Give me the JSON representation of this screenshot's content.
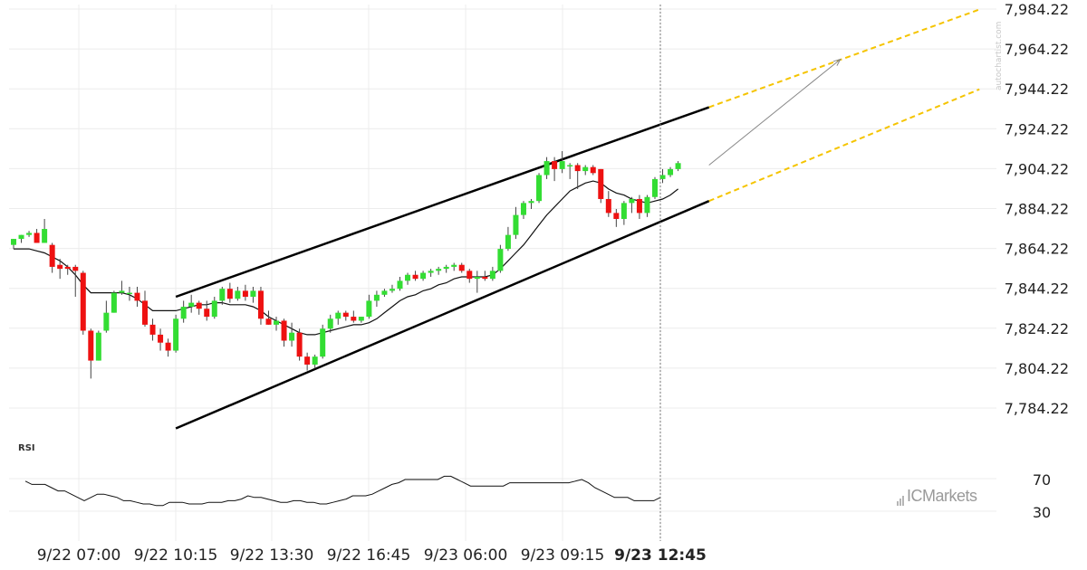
{
  "chart_data": {
    "type": "candlestick",
    "y_axis": {
      "ticks": [
        "7,984.22",
        "7,964.22",
        "7,944.22",
        "7,924.22",
        "7,904.22",
        "7,884.22",
        "7,864.22",
        "7,844.22",
        "7,824.22",
        "7,804.22",
        "7,784.22"
      ],
      "ylim": [
        7778,
        7986
      ],
      "position": "right"
    },
    "x_axis": {
      "ticks": [
        "9/22 07:00",
        "9/22 10:15",
        "9/22 13:30",
        "9/22 16:45",
        "9/23 06:00",
        "9/23 09:15",
        "9/23 12:45"
      ],
      "highlighted_tick": "9/23 12:45"
    },
    "grid": true,
    "colors": {
      "up": "#33dd33",
      "down": "#ee1111",
      "moving_average": "#111111",
      "channel": "#000000",
      "projection": "#f5c400",
      "arrow": "#888888"
    },
    "candles": [
      {
        "o": 7866,
        "h": 7869,
        "l": 7864,
        "c": 7869
      },
      {
        "o": 7869,
        "h": 7871,
        "l": 7867,
        "c": 7871
      },
      {
        "o": 7871,
        "h": 7873,
        "l": 7870,
        "c": 7872
      },
      {
        "o": 7872,
        "h": 7874,
        "l": 7867,
        "c": 7867
      },
      {
        "o": 7867,
        "h": 7879,
        "l": 7867,
        "c": 7874
      },
      {
        "o": 7866,
        "h": 7867,
        "l": 7852,
        "c": 7855
      },
      {
        "o": 7856,
        "h": 7859,
        "l": 7849,
        "c": 7854
      },
      {
        "o": 7855,
        "h": 7856,
        "l": 7851,
        "c": 7854
      },
      {
        "o": 7855,
        "h": 7856,
        "l": 7840,
        "c": 7853
      },
      {
        "o": 7852,
        "h": 7853,
        "l": 7821,
        "c": 7823
      },
      {
        "o": 7823,
        "h": 7824,
        "l": 7799,
        "c": 7808
      },
      {
        "o": 7808,
        "h": 7823,
        "l": 7808,
        "c": 7822
      },
      {
        "o": 7823,
        "h": 7838,
        "l": 7822,
        "c": 7832
      },
      {
        "o": 7832,
        "h": 7843,
        "l": 7832,
        "c": 7842
      },
      {
        "o": 7842,
        "h": 7848,
        "l": 7841,
        "c": 7843
      },
      {
        "o": 7842,
        "h": 7845,
        "l": 7838,
        "c": 7842
      },
      {
        "o": 7842,
        "h": 7845,
        "l": 7835,
        "c": 7838
      },
      {
        "o": 7838,
        "h": 7843,
        "l": 7825,
        "c": 7826
      },
      {
        "o": 7826,
        "h": 7829,
        "l": 7818,
        "c": 7821
      },
      {
        "o": 7821,
        "h": 7824,
        "l": 7813,
        "c": 7817
      },
      {
        "o": 7817,
        "h": 7819,
        "l": 7810,
        "c": 7813
      },
      {
        "o": 7813,
        "h": 7831,
        "l": 7812,
        "c": 7829
      },
      {
        "o": 7829,
        "h": 7838,
        "l": 7827,
        "c": 7835
      },
      {
        "o": 7835,
        "h": 7841,
        "l": 7832,
        "c": 7837
      },
      {
        "o": 7837,
        "h": 7838,
        "l": 7831,
        "c": 7834
      },
      {
        "o": 7834,
        "h": 7838,
        "l": 7828,
        "c": 7830
      },
      {
        "o": 7830,
        "h": 7840,
        "l": 7829,
        "c": 7838
      },
      {
        "o": 7838,
        "h": 7845,
        "l": 7836,
        "c": 7844
      },
      {
        "o": 7844,
        "h": 7847,
        "l": 7837,
        "c": 7839
      },
      {
        "o": 7839,
        "h": 7845,
        "l": 7838,
        "c": 7843
      },
      {
        "o": 7843,
        "h": 7846,
        "l": 7838,
        "c": 7840
      },
      {
        "o": 7840,
        "h": 7845,
        "l": 7837,
        "c": 7843
      },
      {
        "o": 7843,
        "h": 7845,
        "l": 7826,
        "c": 7829
      },
      {
        "o": 7829,
        "h": 7833,
        "l": 7826,
        "c": 7826
      },
      {
        "o": 7826,
        "h": 7830,
        "l": 7823,
        "c": 7828
      },
      {
        "o": 7828,
        "h": 7829,
        "l": 7815,
        "c": 7818
      },
      {
        "o": 7818,
        "h": 7827,
        "l": 7815,
        "c": 7822
      },
      {
        "o": 7822,
        "h": 7824,
        "l": 7808,
        "c": 7810
      },
      {
        "o": 7810,
        "h": 7812,
        "l": 7803,
        "c": 7806
      },
      {
        "o": 7806,
        "h": 7811,
        "l": 7804,
        "c": 7810
      },
      {
        "o": 7810,
        "h": 7826,
        "l": 7809,
        "c": 7824
      },
      {
        "o": 7824,
        "h": 7831,
        "l": 7822,
        "c": 7829
      },
      {
        "o": 7829,
        "h": 7833,
        "l": 7826,
        "c": 7832
      },
      {
        "o": 7832,
        "h": 7833,
        "l": 7828,
        "c": 7830
      },
      {
        "o": 7830,
        "h": 7833,
        "l": 7827,
        "c": 7828
      },
      {
        "o": 7828,
        "h": 7830,
        "l": 7827,
        "c": 7830
      },
      {
        "o": 7830,
        "h": 7841,
        "l": 7829,
        "c": 7838
      },
      {
        "o": 7838,
        "h": 7843,
        "l": 7835,
        "c": 7841
      },
      {
        "o": 7841,
        "h": 7844,
        "l": 7840,
        "c": 7843
      },
      {
        "o": 7843,
        "h": 7846,
        "l": 7842,
        "c": 7844
      },
      {
        "o": 7844,
        "h": 7850,
        "l": 7843,
        "c": 7848
      },
      {
        "o": 7848,
        "h": 7852,
        "l": 7846,
        "c": 7851
      },
      {
        "o": 7851,
        "h": 7853,
        "l": 7848,
        "c": 7849
      },
      {
        "o": 7849,
        "h": 7853,
        "l": 7848,
        "c": 7852
      },
      {
        "o": 7852,
        "h": 7854,
        "l": 7850,
        "c": 7853
      },
      {
        "o": 7853,
        "h": 7855,
        "l": 7851,
        "c": 7854
      },
      {
        "o": 7854,
        "h": 7856,
        "l": 7852,
        "c": 7855
      },
      {
        "o": 7855,
        "h": 7857,
        "l": 7853,
        "c": 7856
      },
      {
        "o": 7856,
        "h": 7857,
        "l": 7852,
        "c": 7853
      },
      {
        "o": 7853,
        "h": 7854,
        "l": 7847,
        "c": 7849
      },
      {
        "o": 7849,
        "h": 7853,
        "l": 7842,
        "c": 7850
      },
      {
        "o": 7850,
        "h": 7853,
        "l": 7848,
        "c": 7849
      },
      {
        "o": 7849,
        "h": 7855,
        "l": 7848,
        "c": 7853
      },
      {
        "o": 7853,
        "h": 7866,
        "l": 7852,
        "c": 7864
      },
      {
        "o": 7864,
        "h": 7875,
        "l": 7863,
        "c": 7871
      },
      {
        "o": 7871,
        "h": 7885,
        "l": 7869,
        "c": 7881
      },
      {
        "o": 7881,
        "h": 7888,
        "l": 7879,
        "c": 7887
      },
      {
        "o": 7887,
        "h": 7889,
        "l": 7884,
        "c": 7888
      },
      {
        "o": 7888,
        "h": 7902,
        "l": 7887,
        "c": 7901
      },
      {
        "o": 7901,
        "h": 7910,
        "l": 7899,
        "c": 7908
      },
      {
        "o": 7908,
        "h": 7910,
        "l": 7898,
        "c": 7904
      },
      {
        "o": 7904,
        "h": 7913,
        "l": 7902,
        "c": 7908
      },
      {
        "o": 7906,
        "h": 7907,
        "l": 7899,
        "c": 7906
      },
      {
        "o": 7906,
        "h": 7907,
        "l": 7894,
        "c": 7903
      },
      {
        "o": 7903,
        "h": 7906,
        "l": 7901,
        "c": 7905
      },
      {
        "o": 7905,
        "h": 7906,
        "l": 7901,
        "c": 7902
      },
      {
        "o": 7904,
        "h": 7904,
        "l": 7887,
        "c": 7889
      },
      {
        "o": 7889,
        "h": 7893,
        "l": 7880,
        "c": 7882
      },
      {
        "o": 7882,
        "h": 7884,
        "l": 7875,
        "c": 7879
      },
      {
        "o": 7879,
        "h": 7888,
        "l": 7876,
        "c": 7887
      },
      {
        "o": 7887,
        "h": 7890,
        "l": 7882,
        "c": 7889
      },
      {
        "o": 7889,
        "h": 7891,
        "l": 7879,
        "c": 7882
      },
      {
        "o": 7882,
        "h": 7891,
        "l": 7880,
        "c": 7890
      },
      {
        "o": 7890,
        "h": 7900,
        "l": 7889,
        "c": 7899
      },
      {
        "o": 7899,
        "h": 7904,
        "l": 7897,
        "c": 7901
      },
      {
        "o": 7901,
        "h": 7905,
        "l": 7900,
        "c": 7904
      },
      {
        "o": 7904,
        "h": 7908,
        "l": 7903,
        "c": 7907
      }
    ],
    "moving_average": [
      7864,
      7864,
      7864,
      7863,
      7862,
      7860,
      7858,
      7855,
      7851,
      7846,
      7842,
      7842,
      7842,
      7842,
      7842,
      7841,
      7839,
      7836,
      7833,
      7833,
      7833,
      7833,
      7834,
      7835,
      7836,
      7836,
      7837,
      7837,
      7836,
      7836,
      7836,
      7835,
      7833,
      7830,
      7828,
      7826,
      7824,
      7822,
      7821,
      7821,
      7822,
      7823,
      7824,
      7825,
      7826,
      7826,
      7827,
      7829,
      7832,
      7835,
      7838,
      7840,
      7841,
      7843,
      7844,
      7846,
      7847,
      7849,
      7850,
      7850,
      7850,
      7850,
      7851,
      7854,
      7858,
      7862,
      7866,
      7871,
      7876,
      7881,
      7885,
      7889,
      7893,
      7895,
      7897,
      7898,
      7897,
      7894,
      7892,
      7891,
      7889,
      7888,
      7887,
      7888,
      7889,
      7891,
      7894
    ],
    "channel_upper": {
      "start": {
        "index": 21,
        "value": 7840
      },
      "end": {
        "index": 90,
        "value": 7935
      }
    },
    "channel_lower": {
      "start": {
        "index": 21,
        "value": 7774
      },
      "end": {
        "index": 90,
        "value": 7888
      }
    },
    "projection_upper": {
      "start": {
        "index": 90,
        "value": 7935
      },
      "end": {
        "index": 125,
        "value": 7984
      }
    },
    "projection_lower": {
      "start": {
        "index": 90,
        "value": 7888
      },
      "end": {
        "index": 125,
        "value": 7944
      }
    },
    "forecast_arrow": {
      "start": {
        "index": 90,
        "value": 7906
      },
      "end": {
        "index": 107,
        "value": 7959
      }
    },
    "rsi": {
      "label": "RSI",
      "ticks": [
        "70",
        "30"
      ],
      "range": [
        0,
        100
      ],
      "values": [
        78,
        74,
        74,
        74,
        70,
        66,
        66,
        62,
        58,
        54,
        58,
        62,
        62,
        60,
        58,
        54,
        54,
        52,
        50,
        50,
        48,
        48,
        52,
        52,
        52,
        50,
        50,
        50,
        52,
        52,
        52,
        54,
        54,
        56,
        60,
        58,
        58,
        56,
        54,
        52,
        52,
        54,
        54,
        52,
        52,
        50,
        50,
        52,
        54,
        56,
        60,
        60,
        60,
        62,
        66,
        70,
        74,
        76,
        80,
        80,
        80,
        80,
        80,
        80,
        84,
        84,
        80,
        76,
        72,
        72,
        72,
        72,
        72,
        72,
        76,
        76,
        76,
        76,
        76,
        76,
        76,
        76,
        76,
        76,
        78,
        80,
        76,
        70,
        66,
        62,
        58,
        58,
        58,
        54,
        54,
        54,
        54,
        58
      ]
    }
  },
  "watermark": "autochartist.com",
  "brand": "ICMarkets"
}
